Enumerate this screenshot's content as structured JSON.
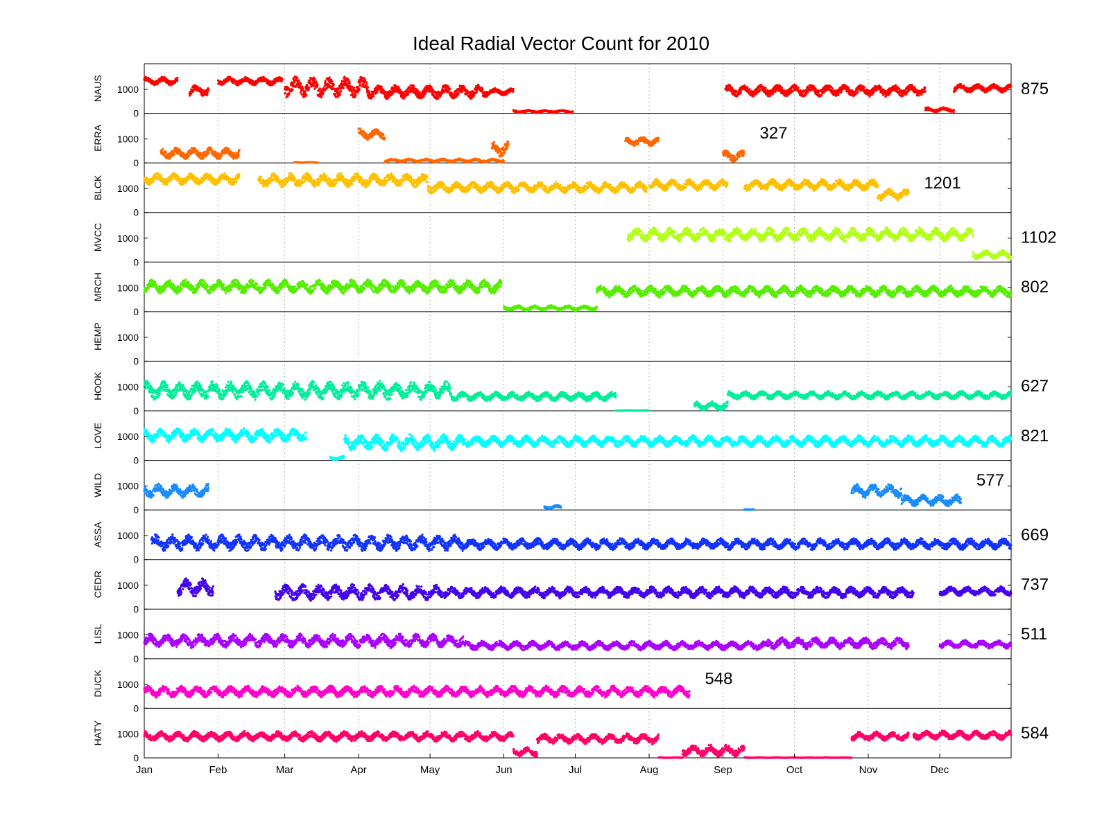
{
  "chart_data": {
    "type": "scatter",
    "title": "Ideal Radial Vector Count for 2010",
    "xlabel": "",
    "ylabel": "",
    "x_tick_labels": [
      "Jan",
      "Feb",
      "Mar",
      "Apr",
      "May",
      "Jun",
      "Jul",
      "Aug",
      "Sep",
      "Oct",
      "Nov",
      "Dec"
    ],
    "x_ticks_day_of_year": [
      1,
      32,
      60,
      91,
      121,
      152,
      182,
      213,
      244,
      274,
      305,
      335
    ],
    "xlim_day_of_year": [
      1,
      365
    ],
    "ylim": [
      0,
      1900
    ],
    "y_tick_labels": [
      "0",
      "1000"
    ],
    "grid": "vertical dotted at month ticks",
    "series": [
      {
        "name": "NAUS",
        "color": "#ff0000",
        "last_value_label": "875",
        "label_pos": "right",
        "segments": [
          {
            "start": "2010-01-01",
            "end": "2010-01-15",
            "level": 1350,
            "spread": 180
          },
          {
            "start": "2010-01-20",
            "end": "2010-01-28",
            "level": 950,
            "spread": 250
          },
          {
            "start": "2010-02-01",
            "end": "2010-02-28",
            "level": 1350,
            "spread": 180
          },
          {
            "start": "2010-03-01",
            "end": "2010-04-05",
            "level": 1100,
            "spread": 450
          },
          {
            "start": "2010-04-05",
            "end": "2010-05-25",
            "level": 900,
            "spread": 300
          },
          {
            "start": "2010-05-25",
            "end": "2010-06-05",
            "level": 900,
            "spread": 150
          },
          {
            "start": "2010-06-05",
            "end": "2010-06-30",
            "level": 80,
            "spread": 60
          },
          {
            "start": "2010-09-02",
            "end": "2010-11-25",
            "level": 950,
            "spread": 250
          },
          {
            "start": "2010-11-25",
            "end": "2010-12-07",
            "level": 150,
            "spread": 100
          },
          {
            "start": "2010-12-07",
            "end": "2010-12-31",
            "level": 1050,
            "spread": 180
          }
        ]
      },
      {
        "name": "ERRA",
        "color": "#ff6600",
        "last_value_label": "327",
        "label_pos": "inline",
        "segments": [
          {
            "start": "2010-01-08",
            "end": "2010-02-10",
            "level": 400,
            "spread": 250
          },
          {
            "start": "2010-03-05",
            "end": "2010-03-15",
            "level": 20,
            "spread": 15
          },
          {
            "start": "2010-04-01",
            "end": "2010-04-12",
            "level": 1200,
            "spread": 250
          },
          {
            "start": "2010-04-12",
            "end": "2010-06-01",
            "level": 100,
            "spread": 80
          },
          {
            "start": "2010-05-27",
            "end": "2010-06-03",
            "level": 600,
            "spread": 350
          },
          {
            "start": "2010-07-22",
            "end": "2010-08-05",
            "level": 900,
            "spread": 200
          },
          {
            "start": "2010-09-01",
            "end": "2010-09-10",
            "level": 300,
            "spread": 250
          }
        ]
      },
      {
        "name": "BLCK",
        "color": "#ffc000",
        "last_value_label": "1201",
        "label_pos": "inline",
        "segments": [
          {
            "start": "2010-01-01",
            "end": "2010-02-10",
            "level": 1400,
            "spread": 250
          },
          {
            "start": "2010-02-18",
            "end": "2010-04-30",
            "level": 1350,
            "spread": 300
          },
          {
            "start": "2010-04-30",
            "end": "2010-07-31",
            "level": 1050,
            "spread": 250
          },
          {
            "start": "2010-08-01",
            "end": "2010-09-03",
            "level": 1150,
            "spread": 250
          },
          {
            "start": "2010-09-10",
            "end": "2010-11-05",
            "level": 1150,
            "spread": 250
          },
          {
            "start": "2010-11-05",
            "end": "2010-11-18",
            "level": 750,
            "spread": 250
          }
        ]
      },
      {
        "name": "MVCC",
        "color": "#b3ff1a",
        "last_value_label": "1102",
        "label_pos": "right",
        "segments": [
          {
            "start": "2010-07-23",
            "end": "2010-12-15",
            "level": 1150,
            "spread": 300
          },
          {
            "start": "2010-12-15",
            "end": "2010-12-31",
            "level": 300,
            "spread": 200
          }
        ]
      },
      {
        "name": "MRCH",
        "color": "#55ee00",
        "last_value_label": "802",
        "label_pos": "right",
        "segments": [
          {
            "start": "2010-01-01",
            "end": "2010-05-31",
            "level": 1050,
            "spread": 300
          },
          {
            "start": "2010-06-01",
            "end": "2010-07-10",
            "level": 150,
            "spread": 120
          },
          {
            "start": "2010-07-10",
            "end": "2010-12-31",
            "level": 850,
            "spread": 250
          }
        ]
      },
      {
        "name": "HEMP",
        "color": "#00cc44",
        "last_value_label": "",
        "label_pos": "right",
        "segments": []
      },
      {
        "name": "HOOK",
        "color": "#00ee99",
        "last_value_label": "627",
        "label_pos": "right",
        "segments": [
          {
            "start": "2010-01-01",
            "end": "2010-05-10",
            "level": 850,
            "spread": 400
          },
          {
            "start": "2010-05-10",
            "end": "2010-07-18",
            "level": 600,
            "spread": 200
          },
          {
            "start": "2010-07-18",
            "end": "2010-08-01",
            "level": 10,
            "spread": 10
          },
          {
            "start": "2010-08-20",
            "end": "2010-09-03",
            "level": 200,
            "spread": 200
          },
          {
            "start": "2010-09-03",
            "end": "2010-12-31",
            "level": 650,
            "spread": 180
          }
        ]
      },
      {
        "name": "LOVE",
        "color": "#00ffff",
        "last_value_label": "821",
        "label_pos": "right",
        "segments": [
          {
            "start": "2010-01-01",
            "end": "2010-03-10",
            "level": 1050,
            "spread": 300
          },
          {
            "start": "2010-03-20",
            "end": "2010-03-26",
            "level": 100,
            "spread": 80
          },
          {
            "start": "2010-03-26",
            "end": "2010-05-15",
            "level": 750,
            "spread": 350
          },
          {
            "start": "2010-05-15",
            "end": "2010-12-31",
            "level": 800,
            "spread": 250
          }
        ]
      },
      {
        "name": "WILD",
        "color": "#1a8cff",
        "last_value_label": "577",
        "label_pos": "inline",
        "segments": [
          {
            "start": "2010-01-01",
            "end": "2010-01-28",
            "level": 800,
            "spread": 300
          },
          {
            "start": "2010-06-18",
            "end": "2010-06-25",
            "level": 120,
            "spread": 80
          },
          {
            "start": "2010-09-10",
            "end": "2010-09-14",
            "level": 20,
            "spread": 15
          },
          {
            "start": "2010-10-25",
            "end": "2010-11-15",
            "level": 800,
            "spread": 300
          },
          {
            "start": "2010-11-15",
            "end": "2010-12-10",
            "level": 400,
            "spread": 250
          }
        ]
      },
      {
        "name": "ASSA",
        "color": "#1133ff",
        "last_value_label": "669",
        "label_pos": "right",
        "segments": [
          {
            "start": "2010-01-04",
            "end": "2010-05-15",
            "level": 700,
            "spread": 350
          },
          {
            "start": "2010-05-15",
            "end": "2010-12-31",
            "level": 650,
            "spread": 250
          }
        ]
      },
      {
        "name": "CEDR",
        "color": "#4400ee",
        "last_value_label": "737",
        "label_pos": "right",
        "segments": [
          {
            "start": "2010-01-15",
            "end": "2010-01-30",
            "level": 900,
            "spread": 400
          },
          {
            "start": "2010-02-25",
            "end": "2010-05-05",
            "level": 700,
            "spread": 350
          },
          {
            "start": "2010-05-05",
            "end": "2010-11-20",
            "level": 700,
            "spread": 250
          },
          {
            "start": "2010-12-01",
            "end": "2010-12-31",
            "level": 750,
            "spread": 200
          }
        ]
      },
      {
        "name": "LISL",
        "color": "#aa00ff",
        "last_value_label": "511",
        "label_pos": "right",
        "segments": [
          {
            "start": "2010-01-01",
            "end": "2010-05-15",
            "level": 750,
            "spread": 300
          },
          {
            "start": "2010-05-15",
            "end": "2010-09-20",
            "level": 550,
            "spread": 200
          },
          {
            "start": "2010-09-20",
            "end": "2010-11-18",
            "level": 650,
            "spread": 250
          },
          {
            "start": "2010-12-01",
            "end": "2010-12-31",
            "level": 600,
            "spread": 180
          }
        ]
      },
      {
        "name": "DUCK",
        "color": "#ff00cc",
        "last_value_label": "548",
        "label_pos": "inline",
        "segments": [
          {
            "start": "2010-01-01",
            "end": "2010-08-18",
            "level": 700,
            "spread": 250
          }
        ]
      },
      {
        "name": "HATY",
        "color": "#ff0066",
        "last_value_label": "584",
        "label_pos": "right",
        "segments": [
          {
            "start": "2010-01-01",
            "end": "2010-06-05",
            "level": 900,
            "spread": 220
          },
          {
            "start": "2010-06-05",
            "end": "2010-06-15",
            "level": 250,
            "spread": 200
          },
          {
            "start": "2010-06-15",
            "end": "2010-08-05",
            "level": 800,
            "spread": 220
          },
          {
            "start": "2010-08-05",
            "end": "2010-08-15",
            "level": 10,
            "spread": 10
          },
          {
            "start": "2010-08-15",
            "end": "2010-09-10",
            "level": 300,
            "spread": 250
          },
          {
            "start": "2010-09-10",
            "end": "2010-10-25",
            "level": 10,
            "spread": 10
          },
          {
            "start": "2010-10-25",
            "end": "2010-11-18",
            "level": 900,
            "spread": 200
          },
          {
            "start": "2010-11-20",
            "end": "2010-12-31",
            "level": 950,
            "spread": 200
          }
        ]
      }
    ]
  }
}
